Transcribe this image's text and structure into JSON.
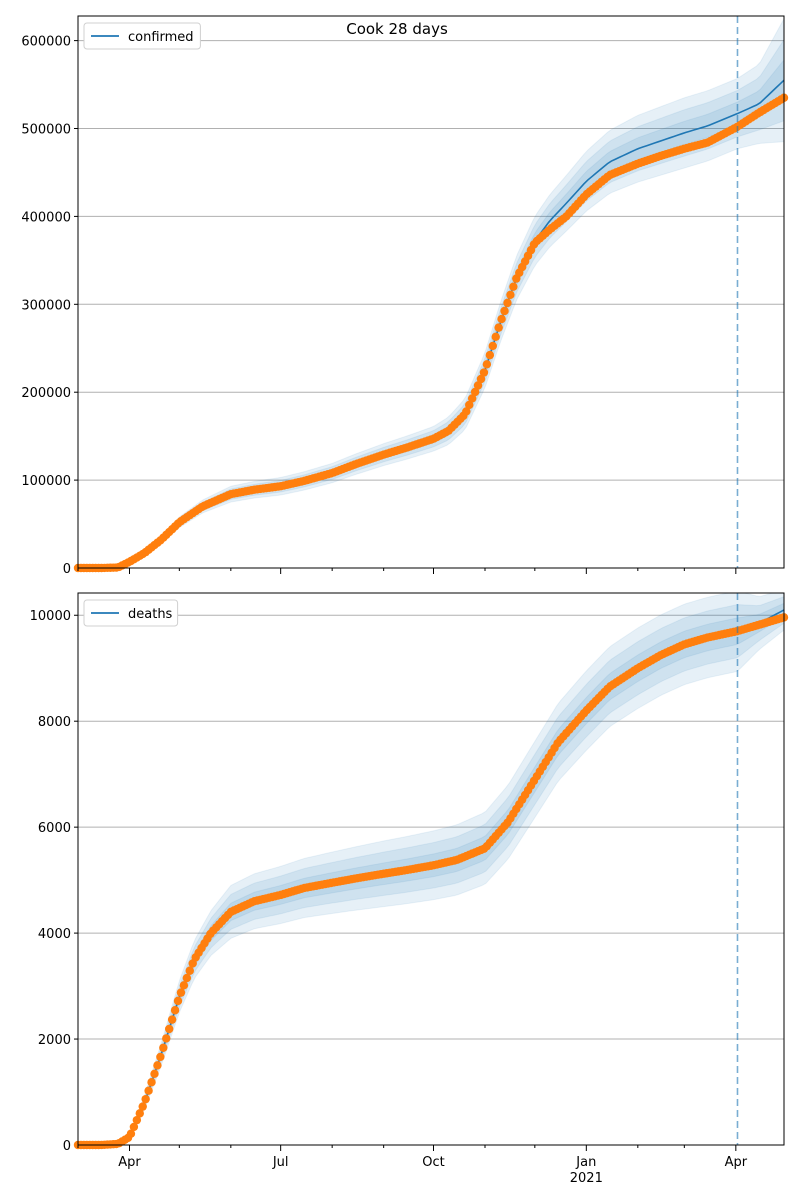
{
  "title": "Cook 28 days",
  "colors": {
    "model_line": "#1f77b4",
    "band": "#1f77b4",
    "observed": "#ff7f0e",
    "forecast_marker": "#1f77b4",
    "grid": "#b0b0b0"
  },
  "chart_data": [
    {
      "type": "line",
      "name": "confirmed-panel",
      "legend": [
        "confirmed"
      ],
      "legend_position": "upper-left",
      "grid": "horizontal",
      "x_axis": {
        "type": "date",
        "range": [
          "2020-03-01",
          "2021-04-30"
        ],
        "tick_labels": [
          {
            "date": "2020-04-01",
            "label": "Apr"
          },
          {
            "date": "2020-07-01",
            "label": "Jul"
          },
          {
            "date": "2020-10-01",
            "label": "Oct"
          },
          {
            "date": "2021-01-01",
            "label": "Jan",
            "sublabel": "2021"
          },
          {
            "date": "2021-04-01",
            "label": "Apr"
          }
        ],
        "visible": false
      },
      "y_axis": {
        "range": [
          0,
          628000
        ],
        "ticks": [
          0,
          100000,
          200000,
          300000,
          400000,
          500000,
          600000
        ],
        "tick_labels": [
          "0",
          "100000",
          "200000",
          "300000",
          "400000",
          "500000",
          "600000"
        ]
      },
      "forecast_start": "2021-04-02",
      "model_fit": {
        "name": "confirmed",
        "x": [
          "2020-03-01",
          "2020-03-15",
          "2020-03-25",
          "2020-04-01",
          "2020-04-10",
          "2020-04-20",
          "2020-05-01",
          "2020-05-15",
          "2020-06-01",
          "2020-06-15",
          "2020-07-01",
          "2020-07-15",
          "2020-08-01",
          "2020-08-15",
          "2020-09-01",
          "2020-09-15",
          "2020-10-01",
          "2020-10-10",
          "2020-10-20",
          "2020-11-01",
          "2020-11-10",
          "2020-11-20",
          "2020-12-01",
          "2020-12-10",
          "2020-12-20",
          "2021-01-01",
          "2021-01-15",
          "2021-02-01",
          "2021-02-15",
          "2021-03-01",
          "2021-03-15",
          "2021-04-02",
          "2021-04-15",
          "2021-04-30"
        ],
        "y": [
          0,
          0,
          500,
          7000,
          17000,
          32000,
          52000,
          70000,
          84000,
          89000,
          93000,
          99000,
          108000,
          118000,
          129000,
          137000,
          147000,
          156000,
          175000,
          225000,
          278000,
          330000,
          372000,
          395000,
          415000,
          440000,
          462000,
          477000,
          486000,
          495000,
          503000,
          517000,
          528000,
          555000
        ]
      },
      "observed": {
        "x": [
          "2020-03-01",
          "2020-03-15",
          "2020-03-25",
          "2020-04-01",
          "2020-04-10",
          "2020-04-20",
          "2020-05-01",
          "2020-05-15",
          "2020-06-01",
          "2020-06-15",
          "2020-07-01",
          "2020-07-15",
          "2020-08-01",
          "2020-08-15",
          "2020-09-01",
          "2020-09-15",
          "2020-10-01",
          "2020-10-10",
          "2020-10-20",
          "2020-11-01",
          "2020-11-10",
          "2020-11-20",
          "2020-12-01",
          "2020-12-10",
          "2020-12-20",
          "2021-01-01",
          "2021-01-15",
          "2021-02-01",
          "2021-02-15",
          "2021-03-01",
          "2021-03-15",
          "2021-04-02",
          "2021-04-15",
          "2021-04-30"
        ],
        "y": [
          0,
          0,
          500,
          7000,
          17000,
          32000,
          52000,
          70000,
          84000,
          89000,
          93000,
          99000,
          108000,
          118000,
          129000,
          137000,
          147000,
          156000,
          175000,
          225000,
          278000,
          330000,
          370000,
          385000,
          400000,
          425000,
          447000,
          460000,
          469000,
          477000,
          484000,
          502000,
          518000,
          535000
        ]
      },
      "band_widths": {
        "x": [
          "2020-03-01",
          "2020-04-01",
          "2020-05-01",
          "2020-06-01",
          "2020-07-01",
          "2020-08-01",
          "2020-09-01",
          "2020-10-01",
          "2020-11-01",
          "2020-12-01",
          "2021-01-01",
          "2021-02-01",
          "2021-03-01",
          "2021-04-02",
          "2021-04-15",
          "2021-04-30"
        ],
        "w": [
          0,
          1500,
          6000,
          9000,
          10000,
          11000,
          12500,
          14000,
          20000,
          28000,
          34000,
          38000,
          40000,
          40000,
          45000,
          70000
        ]
      }
    },
    {
      "type": "line",
      "name": "deaths-panel",
      "legend": [
        "deaths"
      ],
      "legend_position": "upper-left",
      "grid": "horizontal",
      "x_axis": {
        "type": "date",
        "range": [
          "2020-03-01",
          "2021-04-30"
        ],
        "tick_labels": [
          {
            "date": "2020-04-01",
            "label": "Apr"
          },
          {
            "date": "2020-07-01",
            "label": "Jul"
          },
          {
            "date": "2020-10-01",
            "label": "Oct"
          },
          {
            "date": "2021-01-01",
            "label": "Jan",
            "sublabel": "2021"
          },
          {
            "date": "2021-04-01",
            "label": "Apr"
          }
        ],
        "visible": true
      },
      "y_axis": {
        "range": [
          0,
          10420
        ],
        "ticks": [
          0,
          2000,
          4000,
          6000,
          8000,
          10000
        ],
        "tick_labels": [
          "0",
          "2000",
          "4000",
          "6000",
          "8000",
          "10000"
        ]
      },
      "forecast_start": "2021-04-02",
      "model_fit": {
        "name": "deaths",
        "x": [
          "2020-03-01",
          "2020-03-15",
          "2020-03-25",
          "2020-04-01",
          "2020-04-10",
          "2020-04-20",
          "2020-05-01",
          "2020-05-10",
          "2020-05-20",
          "2020-06-01",
          "2020-06-15",
          "2020-07-01",
          "2020-07-15",
          "2020-08-01",
          "2020-08-15",
          "2020-09-01",
          "2020-09-15",
          "2020-10-01",
          "2020-10-15",
          "2020-11-01",
          "2020-11-15",
          "2020-12-01",
          "2020-12-15",
          "2021-01-01",
          "2021-01-15",
          "2021-02-01",
          "2021-02-15",
          "2021-03-01",
          "2021-03-15",
          "2021-04-02",
          "2021-04-15",
          "2021-04-30"
        ],
        "y": [
          0,
          0,
          20,
          150,
          800,
          1700,
          2800,
          3500,
          4000,
          4400,
          4600,
          4720,
          4850,
          4950,
          5030,
          5120,
          5190,
          5280,
          5380,
          5600,
          6100,
          6900,
          7600,
          8200,
          8650,
          9000,
          9250,
          9450,
          9580,
          9700,
          9850,
          10100
        ]
      },
      "observed": {
        "x": [
          "2020-03-01",
          "2020-03-15",
          "2020-03-25",
          "2020-04-01",
          "2020-04-10",
          "2020-04-20",
          "2020-05-01",
          "2020-05-10",
          "2020-05-20",
          "2020-06-01",
          "2020-06-15",
          "2020-07-01",
          "2020-07-15",
          "2020-08-01",
          "2020-08-15",
          "2020-09-01",
          "2020-09-15",
          "2020-10-01",
          "2020-10-15",
          "2020-11-01",
          "2020-11-15",
          "2020-12-01",
          "2020-12-15",
          "2021-01-01",
          "2021-01-15",
          "2021-02-01",
          "2021-02-15",
          "2021-03-01",
          "2021-03-15",
          "2021-04-02",
          "2021-04-15",
          "2021-04-30"
        ],
        "y": [
          0,
          0,
          20,
          150,
          800,
          1700,
          2800,
          3500,
          4000,
          4400,
          4600,
          4720,
          4850,
          4950,
          5030,
          5120,
          5190,
          5280,
          5380,
          5600,
          6100,
          6900,
          7600,
          8200,
          8650,
          9000,
          9250,
          9450,
          9580,
          9700,
          9820,
          9960
        ]
      },
      "band_widths": {
        "x": [
          "2020-03-01",
          "2020-04-01",
          "2020-05-01",
          "2020-06-01",
          "2020-07-01",
          "2020-08-01",
          "2020-09-01",
          "2020-10-01",
          "2020-11-01",
          "2020-12-01",
          "2021-01-01",
          "2021-02-01",
          "2021-03-01",
          "2021-04-02",
          "2021-04-15",
          "2021-04-30"
        ],
        "w": [
          0,
          60,
          300,
          500,
          540,
          580,
          620,
          650,
          680,
          720,
          750,
          760,
          760,
          760,
          500,
          380
        ]
      }
    }
  ]
}
